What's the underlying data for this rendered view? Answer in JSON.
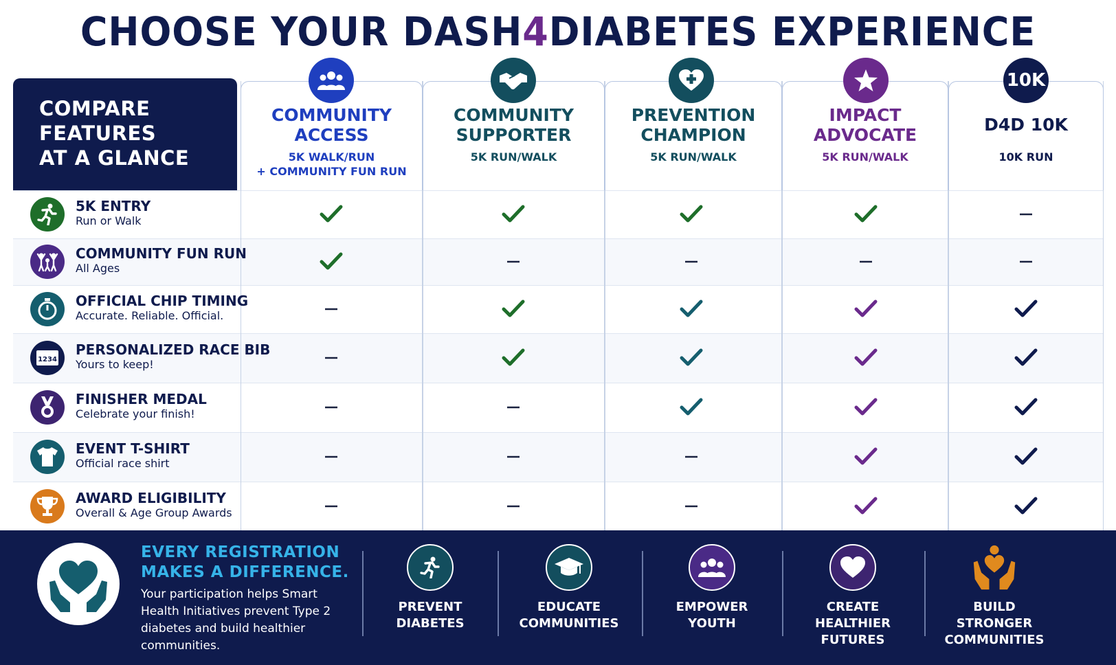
{
  "title": {
    "prefix": "CHOOSE YOUR DASH",
    "highlight": "4",
    "suffix": "DIABETES EXPERIENCE"
  },
  "compare_header": {
    "line1": "COMPARE",
    "line2": "FEATURES",
    "line3": "AT A GLANCE"
  },
  "plans": [
    {
      "name_line1": "COMMUNITY",
      "name_line2": "ACCESS",
      "sub_line1": "5K WALK/RUN",
      "sub_line2": "+ COMMUNITY FUN RUN",
      "icon": "group-icon",
      "color": "#1f3fbf"
    },
    {
      "name_line1": "COMMUNITY",
      "name_line2": "SUPPORTER",
      "sub_line1": "5K RUN/WALK",
      "sub_line2": "",
      "icon": "handshake-icon",
      "color": "#134e5e"
    },
    {
      "name_line1": "PREVENTION",
      "name_line2": "CHAMPION",
      "sub_line1": "5K RUN/WALK",
      "sub_line2": "",
      "icon": "heart-plus-icon",
      "color": "#134e5e"
    },
    {
      "name_line1": "IMPACT",
      "name_line2": "ADVOCATE",
      "sub_line1": "5K RUN/WALK",
      "sub_line2": "",
      "icon": "star-icon",
      "color": "#6a2a8c"
    },
    {
      "name_line1": "D4D 10K",
      "name_line2": "",
      "sub_line1": "10K RUN",
      "sub_line2": "",
      "icon": "10k-badge-icon",
      "badge_text": "10K",
      "color": "#0f1b4d"
    }
  ],
  "features": [
    {
      "title": "5K ENTRY",
      "desc": "Run or Walk",
      "icon": "runner-icon",
      "icon_color": "#1e6e2a",
      "included": [
        true,
        true,
        true,
        true,
        false
      ]
    },
    {
      "title": "COMMUNITY FUN RUN",
      "desc": "All Ages",
      "icon": "family-icon",
      "icon_color": "#4a2a86",
      "included": [
        true,
        false,
        false,
        false,
        false
      ]
    },
    {
      "title": "OFFICIAL CHIP TIMING",
      "desc": "Accurate. Reliable. Official.",
      "icon": "stopwatch-icon",
      "icon_color": "#155e6e",
      "included": [
        false,
        true,
        true,
        true,
        true
      ]
    },
    {
      "title": "PERSONALIZED RACE BIB",
      "desc": "Yours to keep!",
      "icon": "race-bib-icon",
      "icon_color": "#0f1b4d",
      "bib_text": "1234",
      "included": [
        false,
        true,
        true,
        true,
        true
      ]
    },
    {
      "title": "FINISHER MEDAL",
      "desc": "Celebrate your finish!",
      "icon": "medal-icon",
      "icon_color": "#3d2470",
      "included": [
        false,
        false,
        true,
        true,
        true
      ]
    },
    {
      "title": "EVENT T-SHIRT",
      "desc": "Official race shirt",
      "icon": "tshirt-icon",
      "icon_color": "#155e6e",
      "included": [
        false,
        false,
        false,
        true,
        true
      ]
    },
    {
      "title": "AWARD ELIGIBILITY",
      "desc": "Overall & Age Group Awards",
      "icon": "trophy-icon",
      "icon_color": "#d97a1c",
      "included": [
        false,
        false,
        false,
        true,
        true
      ]
    }
  ],
  "check_colors": [
    "#1e6e2a",
    "#1e6e2a",
    "#155e6e",
    "#6a2a8c",
    "#0f1b4d"
  ],
  "check_colors_first_rows": {
    "row0": [
      "#1e6e2a",
      "#1e6e2a",
      "#1e6e2a",
      "#1e6e2a",
      "#0f1b4d"
    ],
    "row1": [
      "#1e6e2a",
      "#1e6e2a",
      "#1e6e2a",
      "#1e6e2a",
      "#0f1b4d"
    ]
  },
  "footer": {
    "heading_line1": "EVERY REGISTRATION",
    "heading_line2": "MAKES A DIFFERENCE.",
    "body": "Your participation helps Smart Health Initiatives prevent Type 2 diabetes and build healthier communities.",
    "items": [
      {
        "line1": "PREVENT",
        "line2": "DIABETES",
        "line3": "",
        "icon": "runner-icon",
        "color": "#134e5e"
      },
      {
        "line1": "EDUCATE",
        "line2": "COMMUNITIES",
        "line3": "",
        "icon": "graduation-cap-icon",
        "color": "#134e5e"
      },
      {
        "line1": "EMPOWER",
        "line2": "YOUTH",
        "line3": "",
        "icon": "group-icon",
        "color": "#4a2a86"
      },
      {
        "line1": "CREATE",
        "line2": "HEALTHIER",
        "line3": "FUTURES",
        "icon": "heart-icon",
        "color": "#3d2470"
      },
      {
        "line1": "BUILD",
        "line2": "STRONGER",
        "line3": "COMMUNITIES",
        "icon": "hands-heart-icon",
        "color": "#e08a1e"
      }
    ]
  }
}
